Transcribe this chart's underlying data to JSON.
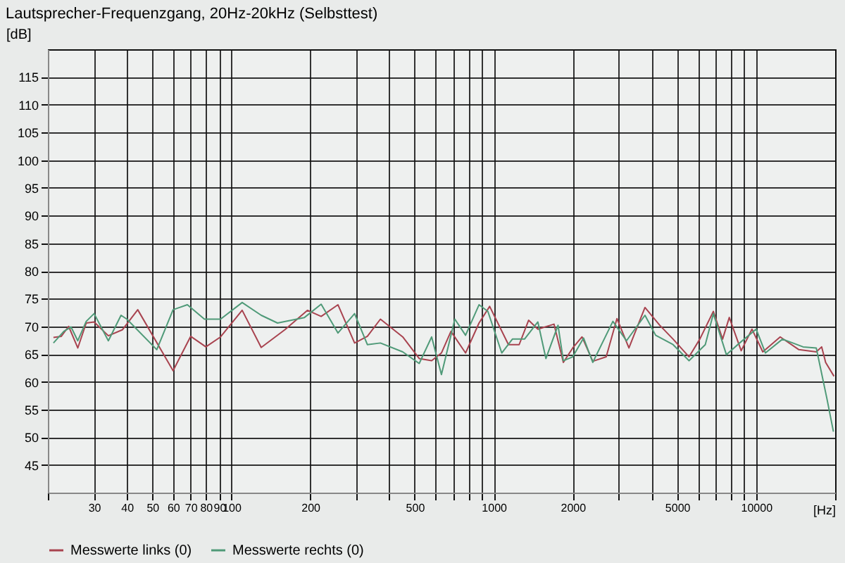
{
  "chart_data": {
    "type": "line",
    "title": "Lautsprecher-Frequenzgang, 20Hz-20kHz (Selbsttest)",
    "xlabel": "[Hz]",
    "ylabel": "[dB]",
    "log": "x",
    "xlim": [
      20,
      20000
    ],
    "ylim": [
      40,
      120
    ],
    "xticks": [
      {
        "value": 20,
        "label": null
      },
      30,
      40,
      50,
      60,
      70,
      80,
      90,
      100,
      200,
      {
        "value": 300,
        "label": null
      },
      {
        "value": 400,
        "label": null
      },
      500,
      {
        "value": 600,
        "label": null
      },
      {
        "value": 700,
        "label": null
      },
      {
        "value": 800,
        "label": null
      },
      {
        "value": 900,
        "label": null
      },
      1000,
      2000,
      {
        "value": 3000,
        "label": null
      },
      {
        "value": 4000,
        "label": null
      },
      5000,
      {
        "value": 6000,
        "label": null
      },
      {
        "value": 7000,
        "label": null
      },
      {
        "value": 8000,
        "label": null
      },
      {
        "value": 9000,
        "label": null
      },
      10000,
      {
        "value": 20000,
        "label": null
      }
    ],
    "yticks": [
      45,
      50,
      55,
      60,
      65,
      70,
      75,
      80,
      85,
      90,
      95,
      100,
      105,
      110,
      115
    ],
    "grid": true,
    "legend": "bottom",
    "line_style": "solid",
    "marker": "none",
    "series": [
      {
        "name": "Messwerte links (0)",
        "color": "#a8434f",
        "x": [
          21,
          22.5,
          24,
          26,
          28,
          30,
          34,
          38.5,
          44,
          60,
          70,
          80,
          91,
          110,
          130,
          160,
          195,
          220,
          255,
          295,
          330,
          370,
          450,
          520,
          580,
          632,
          687,
          781,
          879,
          965,
          1138,
          1250,
          1358,
          1473,
          1697,
          1842,
          2000,
          2170,
          2385,
          2683,
          2948,
          3275,
          3770,
          4290,
          4825,
          5550,
          6100,
          6870,
          7450,
          7900,
          8770,
          9640,
          10600,
          12350,
          14550,
          16950,
          17770,
          18400,
          19800
        ],
        "values": [
          68,
          68.2,
          70,
          66.1,
          70.6,
          70.8,
          68.3,
          69.4,
          73,
          62,
          68.2,
          66.3,
          68.1,
          72.9,
          66.2,
          69.4,
          72.9,
          71.8,
          73.9,
          67,
          68.2,
          71.3,
          68.1,
          64.2,
          63.8,
          65.2,
          69.1,
          65.2,
          70.6,
          73.6,
          66.7,
          66.7,
          71.1,
          69.5,
          70.4,
          63.5,
          66.1,
          68.1,
          63.7,
          64.5,
          71.4,
          66.1,
          73.4,
          70.2,
          67.7,
          64.5,
          67.7,
          72.7,
          67.7,
          71.6,
          65.6,
          69.5,
          65.4,
          68.1,
          65.8,
          65.4,
          66.3,
          63.5,
          61
        ]
      },
      {
        "name": "Messwerte rechts (0)",
        "color": "#4f9a78",
        "x": [
          21,
          23,
          24.5,
          26,
          28,
          30,
          34,
          38,
          40,
          52,
          60,
          68,
          79,
          91,
          110,
          130,
          150,
          190,
          220,
          255,
          295,
          330,
          370,
          450,
          520,
          580,
          632,
          711,
          781,
          879,
          950,
          1073,
          1178,
          1310,
          1473,
          1581,
          1758,
          1842,
          2000,
          2200,
          2385,
          2845,
          3205,
          3770,
          4140,
          4825,
          5550,
          6400,
          6870,
          7700,
          8650,
          10000,
          10850,
          12600,
          15100,
          16950,
          18600,
          19700
        ],
        "values": [
          67,
          69.1,
          69.9,
          67.4,
          70.9,
          72.3,
          67.4,
          72,
          71.3,
          65.8,
          73,
          73.9,
          71.3,
          71.3,
          74.3,
          72,
          70.6,
          71.6,
          74,
          68.8,
          72.3,
          66.7,
          67,
          65.4,
          63.3,
          68.1,
          61.3,
          71.3,
          68.4,
          73.9,
          72.7,
          65.2,
          67.7,
          67.7,
          70.8,
          64.2,
          70.2,
          63.8,
          64.5,
          67.9,
          63.5,
          70.9,
          67.4,
          72,
          68.4,
          66.7,
          63.8,
          66.7,
          72.3,
          64.9,
          67,
          69.5,
          65.2,
          67.7,
          66.3,
          66.1,
          57,
          51
        ]
      }
    ]
  }
}
